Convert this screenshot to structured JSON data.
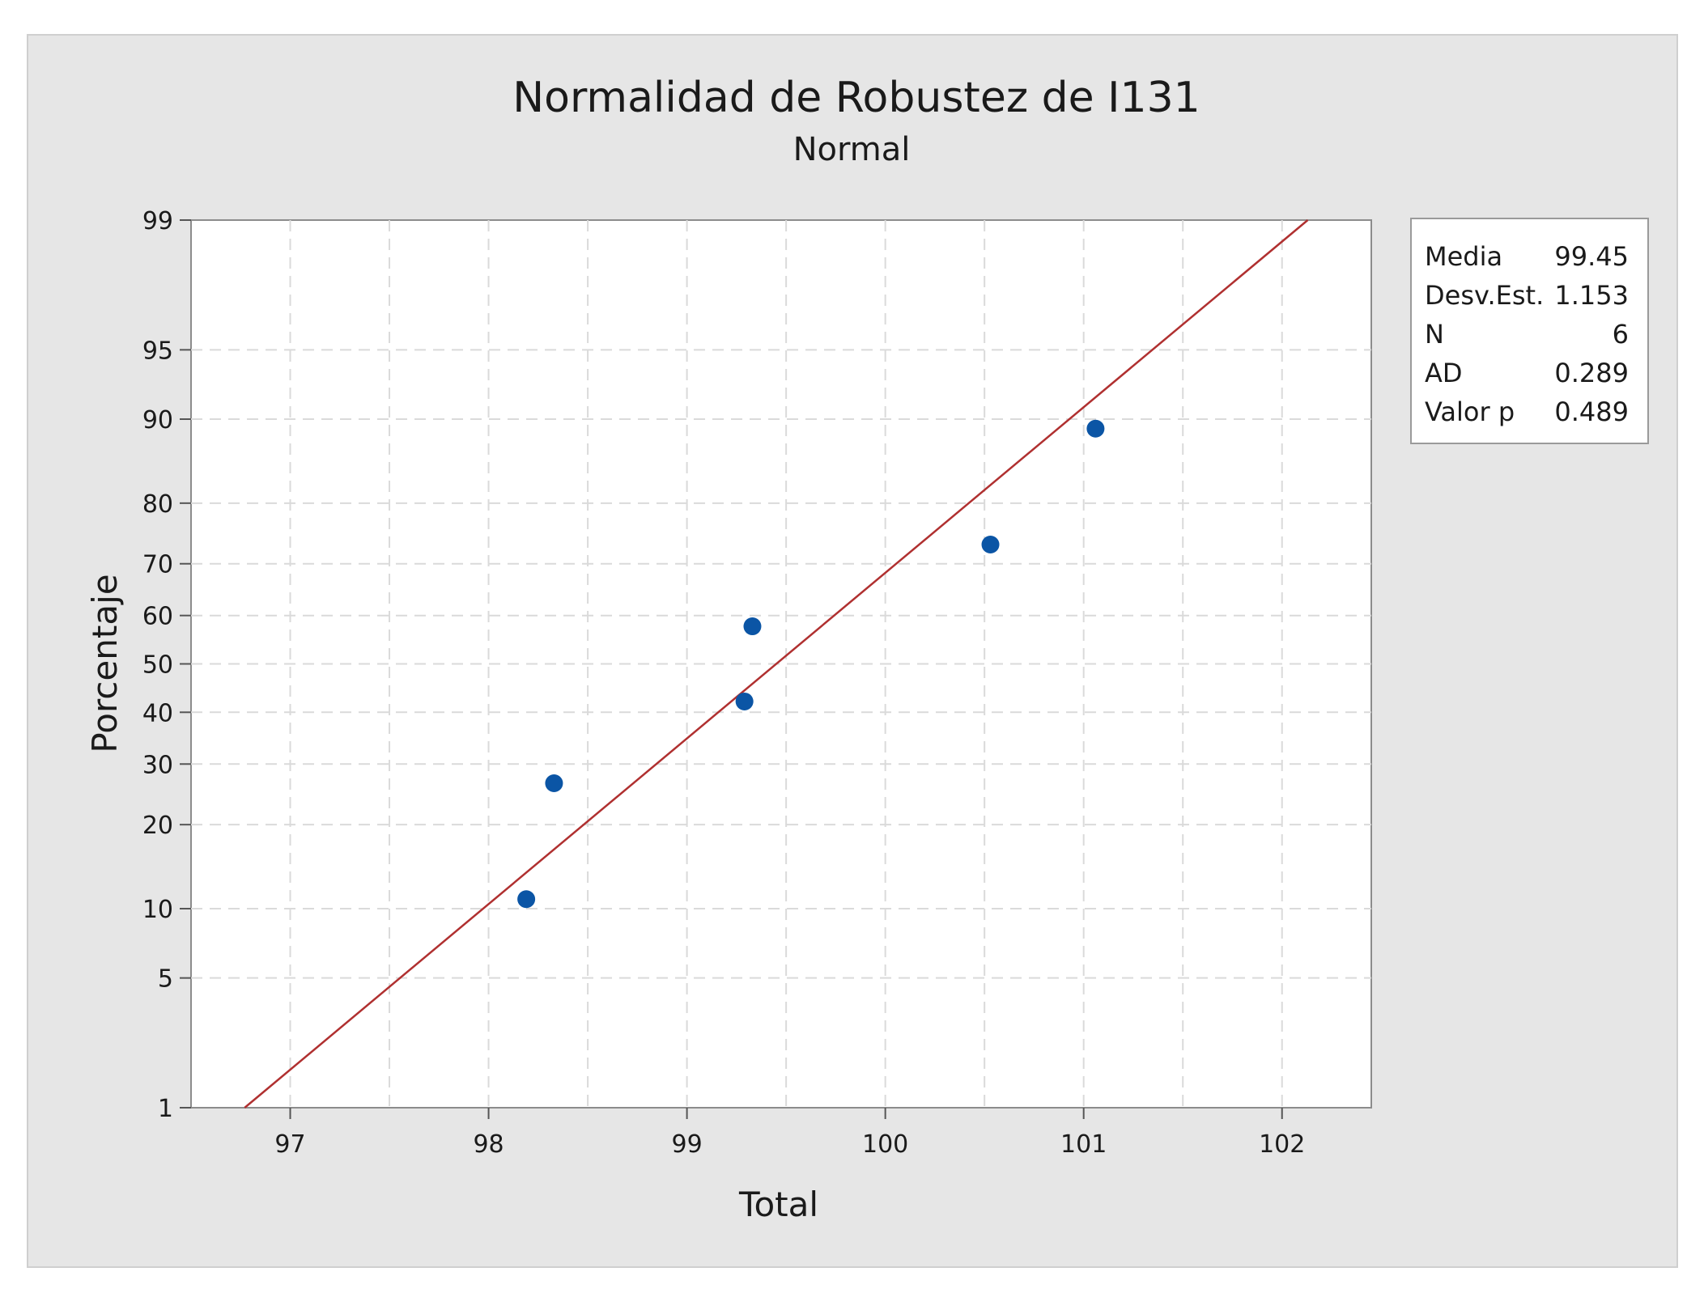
{
  "chart_data": {
    "type": "scatter",
    "title": "Normalidad de Robustez de I131",
    "subtitle": "Normal",
    "xlabel": "Total",
    "ylabel": "Porcentaje",
    "xlim": [
      96.5,
      102.45
    ],
    "ylim": [
      1,
      99
    ],
    "y_scale": "normal-probability",
    "x_ticks": [
      97,
      98,
      99,
      100,
      101,
      102
    ],
    "y_ticks": [
      1,
      5,
      10,
      20,
      30,
      40,
      50,
      60,
      70,
      80,
      90,
      95,
      99
    ],
    "grid": true,
    "series": [
      {
        "x": [
          98.19,
          98.33,
          99.29,
          99.33,
          100.53,
          101.06
        ],
        "y": [
          10.9,
          26.6,
          42.2,
          57.8,
          73.4,
          89.1
        ],
        "color": "#0b55a5"
      }
    ],
    "fit_line": {
      "mean": 99.45,
      "stdev": 1.153,
      "color": "#b03030"
    },
    "legend_placement": "right",
    "stats": [
      {
        "label": "Media",
        "value": "99.45"
      },
      {
        "label": "Desv.Est.",
        "value": "1.153"
      },
      {
        "label": "N",
        "value": "6"
      },
      {
        "label": "AD",
        "value": "0.289"
      },
      {
        "label": "Valor p",
        "value": "0.489"
      }
    ]
  }
}
